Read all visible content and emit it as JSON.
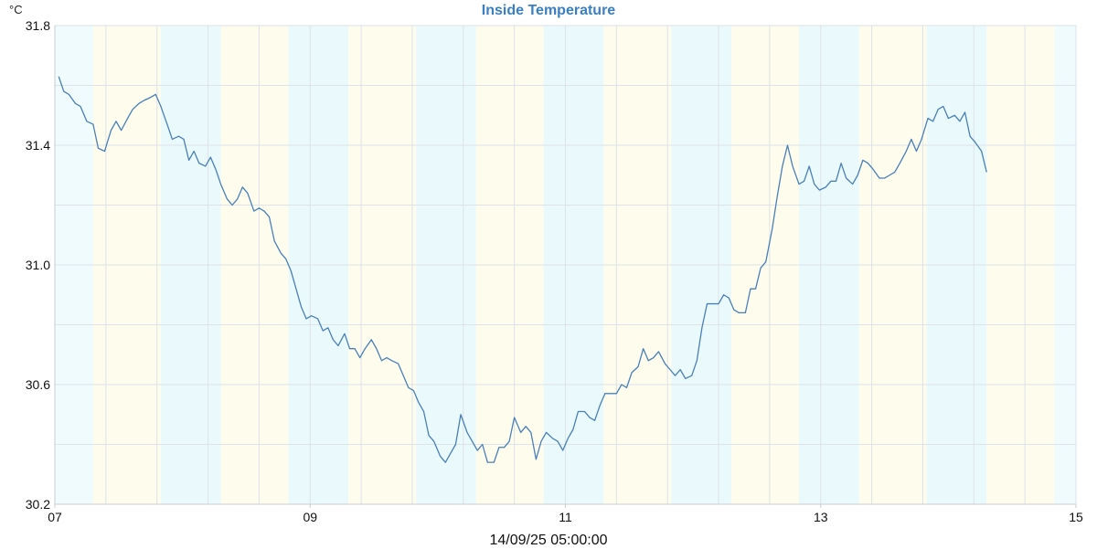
{
  "chart_data": {
    "type": "line",
    "title": "Inside Temperature",
    "ylabel": "°C",
    "footer": "14/09/25 05:00:00",
    "xlim": [
      7,
      15
    ],
    "ylim": [
      30.2,
      31.8
    ],
    "x_ticks": [
      "07",
      "09",
      "11",
      "13",
      "15"
    ],
    "y_ticks": [
      "30.2",
      "30.6",
      "31.0",
      "31.4",
      "31.8"
    ],
    "grid": true,
    "band_colors": [
      "#f0fbfe",
      "#fdfced",
      "#eaf9fc"
    ],
    "line_color": "#4a80b8",
    "series": [
      {
        "values": [
          [
            7.03,
            31.63
          ],
          [
            7.07,
            31.58
          ],
          [
            7.11,
            31.57
          ],
          [
            7.16,
            31.54
          ],
          [
            7.2,
            31.53
          ],
          [
            7.25,
            31.48
          ],
          [
            7.3,
            31.47
          ],
          [
            7.34,
            31.39
          ],
          [
            7.39,
            31.38
          ],
          [
            7.44,
            31.45
          ],
          [
            7.48,
            31.48
          ],
          [
            7.52,
            31.45
          ],
          [
            7.57,
            31.49
          ],
          [
            7.61,
            31.52
          ],
          [
            7.66,
            31.54
          ],
          [
            7.7,
            31.55
          ],
          [
            7.75,
            31.56
          ],
          [
            7.79,
            31.57
          ],
          [
            7.83,
            31.53
          ],
          [
            7.88,
            31.47
          ],
          [
            7.92,
            31.42
          ],
          [
            7.97,
            31.43
          ],
          [
            8.01,
            31.42
          ],
          [
            8.05,
            31.35
          ],
          [
            8.09,
            31.38
          ],
          [
            8.13,
            31.34
          ],
          [
            8.18,
            31.33
          ],
          [
            8.22,
            31.36
          ],
          [
            8.26,
            31.32
          ],
          [
            8.3,
            31.27
          ],
          [
            8.35,
            31.22
          ],
          [
            8.39,
            31.2
          ],
          [
            8.43,
            31.22
          ],
          [
            8.47,
            31.26
          ],
          [
            8.51,
            31.24
          ],
          [
            8.56,
            31.18
          ],
          [
            8.6,
            31.19
          ],
          [
            8.64,
            31.18
          ],
          [
            8.68,
            31.16
          ],
          [
            8.72,
            31.08
          ],
          [
            8.77,
            31.04
          ],
          [
            8.81,
            31.02
          ],
          [
            8.85,
            30.98
          ],
          [
            8.89,
            30.92
          ],
          [
            8.93,
            30.86
          ],
          [
            8.97,
            30.82
          ],
          [
            9.01,
            30.83
          ],
          [
            9.06,
            30.82
          ],
          [
            9.1,
            30.78
          ],
          [
            9.14,
            30.79
          ],
          [
            9.18,
            30.75
          ],
          [
            9.22,
            30.73
          ],
          [
            9.27,
            30.77
          ],
          [
            9.31,
            30.72
          ],
          [
            9.35,
            30.72
          ],
          [
            9.39,
            30.69
          ],
          [
            9.43,
            30.72
          ],
          [
            9.48,
            30.75
          ],
          [
            9.52,
            30.72
          ],
          [
            9.56,
            30.68
          ],
          [
            9.6,
            30.69
          ],
          [
            9.64,
            30.68
          ],
          [
            9.69,
            30.67
          ],
          [
            9.73,
            30.63
          ],
          [
            9.77,
            30.59
          ],
          [
            9.81,
            30.58
          ],
          [
            9.85,
            30.54
          ],
          [
            9.89,
            30.51
          ],
          [
            9.93,
            30.43
          ],
          [
            9.97,
            30.41
          ],
          [
            10.02,
            30.36
          ],
          [
            10.06,
            30.34
          ],
          [
            10.1,
            30.37
          ],
          [
            10.14,
            30.4
          ],
          [
            10.18,
            30.5
          ],
          [
            10.23,
            30.44
          ],
          [
            10.27,
            30.41
          ],
          [
            10.31,
            30.38
          ],
          [
            10.35,
            30.4
          ],
          [
            10.39,
            30.34
          ],
          [
            10.44,
            30.34
          ],
          [
            10.48,
            30.39
          ],
          [
            10.52,
            30.39
          ],
          [
            10.56,
            30.41
          ],
          [
            10.6,
            30.49
          ],
          [
            10.65,
            30.44
          ],
          [
            10.69,
            30.46
          ],
          [
            10.73,
            30.44
          ],
          [
            10.77,
            30.35
          ],
          [
            10.81,
            30.41
          ],
          [
            10.85,
            30.44
          ],
          [
            10.9,
            30.42
          ],
          [
            10.94,
            30.41
          ],
          [
            10.98,
            30.38
          ],
          [
            11.02,
            30.42
          ],
          [
            11.06,
            30.45
          ],
          [
            11.1,
            30.51
          ],
          [
            11.15,
            30.51
          ],
          [
            11.19,
            30.49
          ],
          [
            11.23,
            30.48
          ],
          [
            11.27,
            30.53
          ],
          [
            11.31,
            30.57
          ],
          [
            11.36,
            30.57
          ],
          [
            11.4,
            30.57
          ],
          [
            11.44,
            30.6
          ],
          [
            11.48,
            30.59
          ],
          [
            11.52,
            30.64
          ],
          [
            11.57,
            30.66
          ],
          [
            11.61,
            30.72
          ],
          [
            11.65,
            30.68
          ],
          [
            11.69,
            30.69
          ],
          [
            11.73,
            30.71
          ],
          [
            11.78,
            30.67
          ],
          [
            11.82,
            30.65
          ],
          [
            11.86,
            30.63
          ],
          [
            11.9,
            30.65
          ],
          [
            11.94,
            30.62
          ],
          [
            11.99,
            30.63
          ],
          [
            12.03,
            30.68
          ],
          [
            12.07,
            30.79
          ],
          [
            12.11,
            30.87
          ],
          [
            12.15,
            30.87
          ],
          [
            12.2,
            30.87
          ],
          [
            12.24,
            30.9
          ],
          [
            12.28,
            30.89
          ],
          [
            12.32,
            30.85
          ],
          [
            12.36,
            30.84
          ],
          [
            12.41,
            30.84
          ],
          [
            12.45,
            30.92
          ],
          [
            12.49,
            30.92
          ],
          [
            12.53,
            30.99
          ],
          [
            12.57,
            31.01
          ],
          [
            12.62,
            31.12
          ],
          [
            12.66,
            31.23
          ],
          [
            12.7,
            31.33
          ],
          [
            12.74,
            31.4
          ],
          [
            12.78,
            31.33
          ],
          [
            12.83,
            31.27
          ],
          [
            12.87,
            31.28
          ],
          [
            12.91,
            31.33
          ],
          [
            12.95,
            31.27
          ],
          [
            12.99,
            31.25
          ],
          [
            13.04,
            31.26
          ],
          [
            13.08,
            31.28
          ],
          [
            13.12,
            31.28
          ],
          [
            13.16,
            31.34
          ],
          [
            13.2,
            31.29
          ],
          [
            13.25,
            31.27
          ],
          [
            13.29,
            31.3
          ],
          [
            13.33,
            31.35
          ],
          [
            13.37,
            31.34
          ],
          [
            13.41,
            31.32
          ],
          [
            13.46,
            31.29
          ],
          [
            13.5,
            31.29
          ],
          [
            13.54,
            31.3
          ],
          [
            13.58,
            31.31
          ],
          [
            13.62,
            31.34
          ],
          [
            13.67,
            31.38
          ],
          [
            13.71,
            31.42
          ],
          [
            13.75,
            31.38
          ],
          [
            13.79,
            31.42
          ],
          [
            13.84,
            31.49
          ],
          [
            13.88,
            31.48
          ],
          [
            13.92,
            31.52
          ],
          [
            13.96,
            31.53
          ],
          [
            14.0,
            31.49
          ],
          [
            14.05,
            31.5
          ],
          [
            14.09,
            31.48
          ],
          [
            14.13,
            31.51
          ],
          [
            14.17,
            31.43
          ],
          [
            14.21,
            31.41
          ],
          [
            14.26,
            31.38
          ],
          [
            14.3,
            31.31
          ]
        ]
      }
    ]
  }
}
